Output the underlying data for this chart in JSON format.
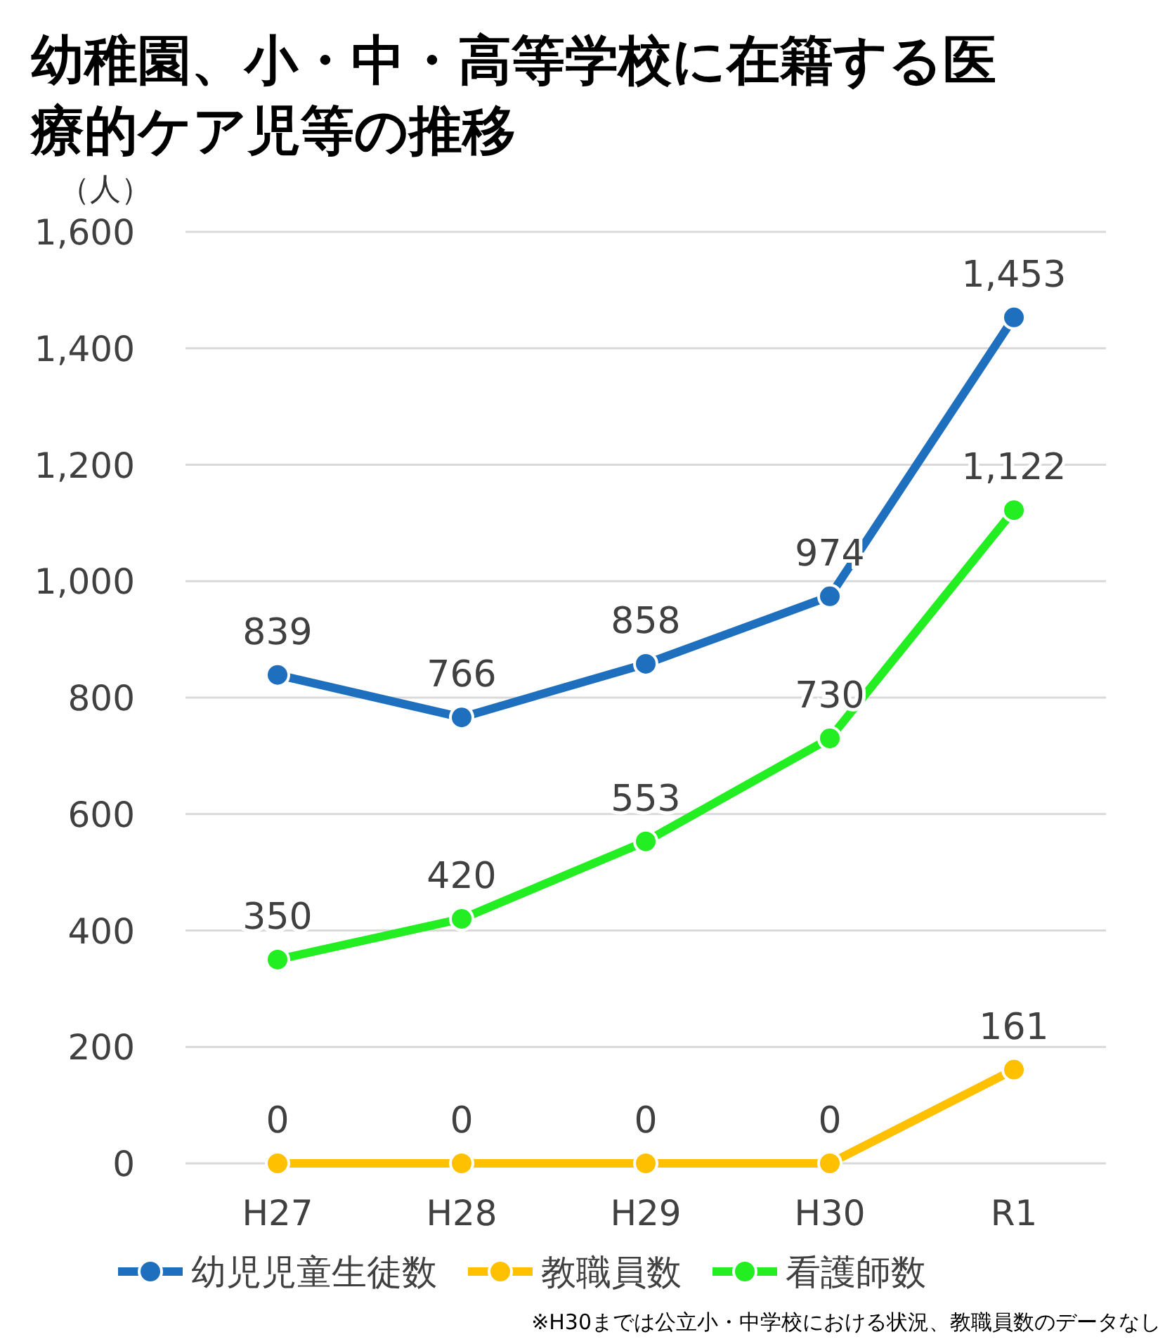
{
  "chart_data": {
    "type": "line",
    "title": "幼稚園、小・中・高等学校に在籍する医療的ケア児等の推移",
    "ylabel": "（人）",
    "categories": [
      "H27",
      "H28",
      "H29",
      "H30",
      "R1"
    ],
    "series": [
      {
        "name": "幼児児童生徒数",
        "color": "#1f6fbf",
        "values": [
          839,
          766,
          858,
          974,
          1453
        ],
        "value_labels": [
          "839",
          "766",
          "858",
          "974",
          "1,453"
        ]
      },
      {
        "name": "教職員数",
        "color": "#ffc000",
        "values": [
          0,
          0,
          0,
          0,
          161
        ]
      },
      {
        "name": "看護師数",
        "color": "#22ee22",
        "values": [
          350,
          420,
          553,
          730,
          1122
        ],
        "value_labels": [
          "350",
          "420",
          "553",
          "730",
          "1,122"
        ]
      }
    ],
    "ylim": [
      0,
      1600
    ],
    "yticks": [
      0,
      200,
      400,
      600,
      800,
      {
        "value": 1000,
        "label": "1,000"
      },
      {
        "value": 1200,
        "label": "1,200"
      },
      {
        "value": 1400,
        "label": "1,400"
      },
      {
        "value": 1600,
        "label": "1,600"
      }
    ],
    "grid": "y",
    "legend": "bottom",
    "marker": "circle",
    "line_style": "solid",
    "data_labels": true,
    "annotations": [
      "※H30までは公立小・中学校における状況、教職員数のデータなし"
    ]
  }
}
